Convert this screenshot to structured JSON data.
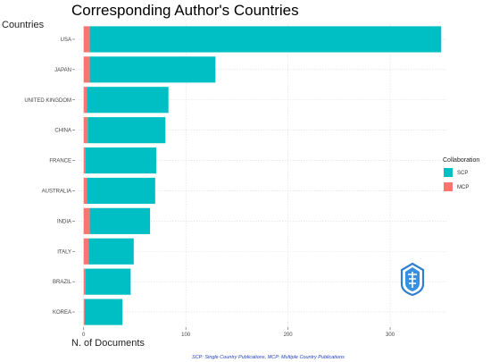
{
  "chart_data": {
    "type": "bar",
    "orientation": "horizontal",
    "stacked": true,
    "title": "Corresponding Author's Countries",
    "ylabel": "Countries",
    "xlabel": "N. of Documents",
    "categories": [
      "USA",
      "JAPAN",
      "UNITED KINGDOM",
      "CHINA",
      "FRANCE",
      "AUSTRALIA",
      "INDIA",
      "ITALY",
      "BRAZIL",
      "KOREA"
    ],
    "series": [
      {
        "name": "MCP",
        "color": "#f8766d",
        "values": [
          6,
          6,
          3,
          4,
          2,
          3,
          6,
          5,
          2,
          1
        ]
      },
      {
        "name": "SCP",
        "color": "#00bfc4",
        "values": [
          344,
          123,
          80,
          76,
          69,
          67,
          59,
          44,
          44,
          37
        ]
      }
    ],
    "xlim": [
      -5,
      355
    ],
    "xticks": [
      0,
      100,
      200,
      300
    ],
    "grid": true,
    "legend": {
      "title": "Collaboration",
      "position": "right",
      "order": [
        "SCP",
        "MCP"
      ]
    },
    "caption": "SCP: Single Country Publications, MCP: Multiple Country Publications",
    "logo_icon": "shield-logo-icon"
  }
}
